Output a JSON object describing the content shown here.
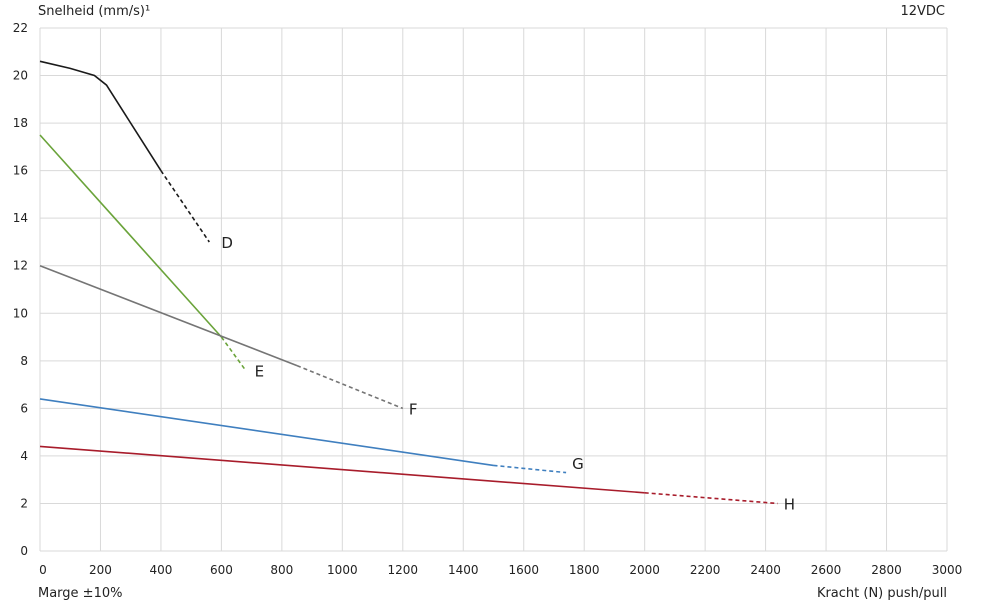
{
  "chart_data": {
    "type": "line",
    "ylabel": "Snelheid (mm/s)¹",
    "xlabel": "Kracht (N) push/pull",
    "note": "Marge ±10%",
    "top_right_label": "12VDC",
    "xlim": [
      0,
      3000
    ],
    "ylim": [
      0,
      22
    ],
    "x_ticks": [
      0,
      200,
      400,
      600,
      800,
      1000,
      1200,
      1400,
      1600,
      1800,
      2000,
      2200,
      2400,
      2600,
      2800,
      3000
    ],
    "y_ticks": [
      0,
      2,
      4,
      6,
      8,
      10,
      12,
      14,
      16,
      18,
      20,
      22
    ],
    "grid": true,
    "series": [
      {
        "name": "D",
        "color": "#1a1a1a",
        "solid": [
          [
            0,
            20.6
          ],
          [
            100,
            20.3
          ],
          [
            180,
            20.0
          ],
          [
            220,
            19.6
          ],
          [
            400,
            16.0
          ]
        ],
        "dashed": [
          [
            400,
            16.0
          ],
          [
            560,
            13.0
          ]
        ],
        "label_at": [
          600,
          13.0
        ]
      },
      {
        "name": "E",
        "color": "#6aa33a",
        "solid": [
          [
            0,
            17.5
          ],
          [
            600,
            9.0
          ]
        ],
        "dashed": [
          [
            600,
            9.0
          ],
          [
            680,
            7.6
          ]
        ],
        "label_at": [
          710,
          7.6
        ]
      },
      {
        "name": "F",
        "color": "#757575",
        "solid": [
          [
            0,
            12.0
          ],
          [
            850,
            7.8
          ]
        ],
        "dashed": [
          [
            850,
            7.8
          ],
          [
            1200,
            6.0
          ]
        ],
        "label_at": [
          1220,
          6.0
        ]
      },
      {
        "name": "G",
        "color": "#3f7fbf",
        "solid": [
          [
            0,
            6.4
          ],
          [
            1500,
            3.6
          ]
        ],
        "dashed": [
          [
            1500,
            3.6
          ],
          [
            1740,
            3.3
          ]
        ],
        "label_at": [
          1760,
          3.7
        ]
      },
      {
        "name": "H",
        "color": "#a81c2b",
        "solid": [
          [
            0,
            4.4
          ],
          [
            2000,
            2.45
          ]
        ],
        "dashed": [
          [
            2000,
            2.45
          ],
          [
            2440,
            2.0
          ]
        ],
        "label_at": [
          2460,
          2.0
        ]
      }
    ]
  }
}
